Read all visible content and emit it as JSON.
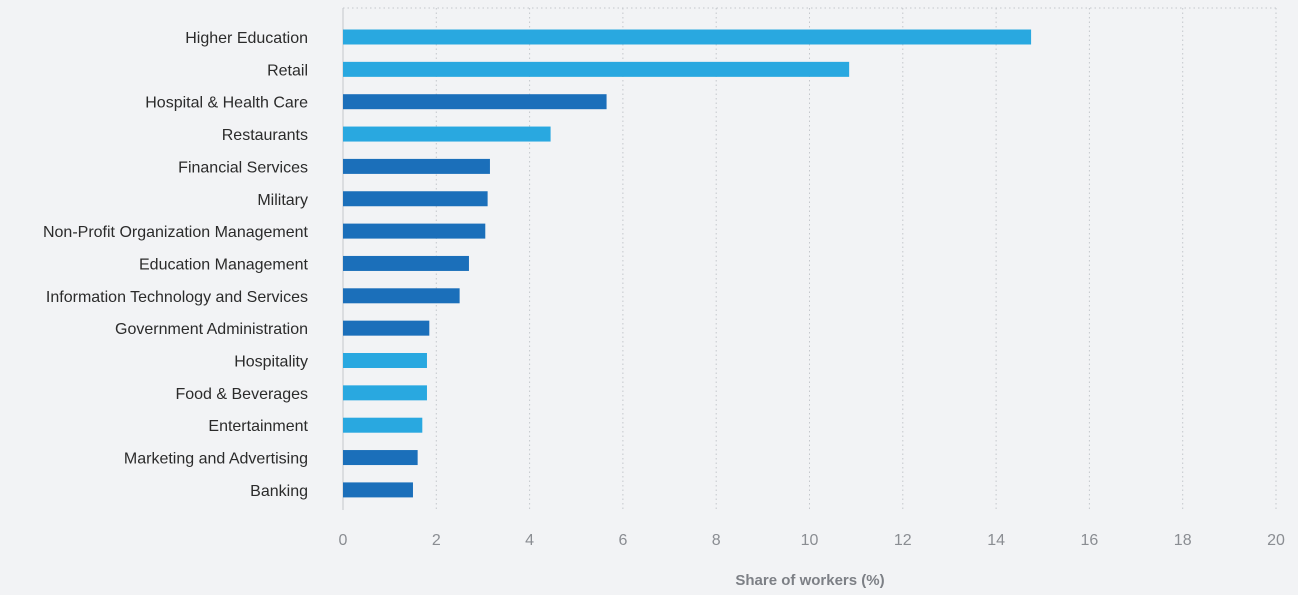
{
  "chart_data": {
    "type": "bar",
    "orientation": "horizontal",
    "categories": [
      "Higher Education",
      "Retail",
      "Hospital & Health Care",
      "Restaurants",
      "Financial Services",
      "Military",
      "Non-Profit Organization Management",
      "Education Management",
      "Information Technology and Services",
      "Government Administration",
      "Hospitality",
      "Food & Beverages",
      "Entertainment",
      "Marketing and Advertising",
      "Banking"
    ],
    "values": [
      14.75,
      10.85,
      5.65,
      4.45,
      3.15,
      3.1,
      3.05,
      2.7,
      2.5,
      1.85,
      1.8,
      1.8,
      1.7,
      1.6,
      1.5
    ],
    "bar_colors": [
      "#29a8e0",
      "#29a8e0",
      "#1b6fba",
      "#29a8e0",
      "#1b6fba",
      "#1b6fba",
      "#1b6fba",
      "#1b6fba",
      "#1b6fba",
      "#1b6fba",
      "#29a8e0",
      "#29a8e0",
      "#29a8e0",
      "#1b6fba",
      "#1b6fba"
    ],
    "xlabel": "Share of workers (%)",
    "ylabel": "",
    "xlim": [
      0,
      20
    ],
    "xticks": [
      "0",
      "2",
      "4",
      "6",
      "8",
      "10",
      "12",
      "14",
      "16",
      "18",
      "20"
    ],
    "grid": true,
    "legend": "none"
  },
  "colors": {
    "background": "#f2f3f5",
    "light_blue": "#29a8e0",
    "dark_blue": "#1b6fba"
  }
}
